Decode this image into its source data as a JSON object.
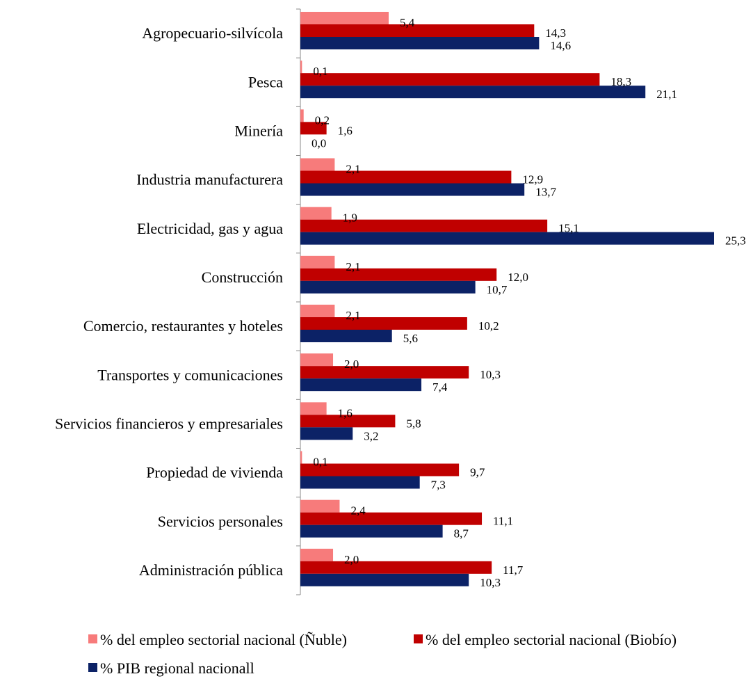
{
  "chart_data": {
    "type": "bar",
    "orientation": "horizontal",
    "categories": [
      "Agropecuario-silvícola",
      "Pesca",
      "Minería",
      "Industria manufacturera",
      "Electricidad, gas y agua",
      "Construcción",
      "Comercio, restaurantes y hoteles",
      "Transportes y comunicaciones",
      "Servicios financieros y empresariales",
      "Propiedad de vivienda",
      "Servicios personales",
      "Administración pública"
    ],
    "series": [
      {
        "name": "% del empleo sectorial nacional (Ñuble)",
        "color": "#f77b7b",
        "values": [
          5.4,
          0.1,
          0.2,
          2.1,
          1.9,
          2.1,
          2.1,
          2.0,
          1.6,
          0.1,
          2.4,
          2.0
        ],
        "labels": [
          "5,4",
          "0,1",
          "0,2",
          "2,1",
          "1,9",
          "2,1",
          "2,1",
          "2,0",
          "1,6",
          "0,1",
          "2,4",
          "2,0"
        ]
      },
      {
        "name": "% del empleo sectorial nacional (Biobío)",
        "color": "#c00000",
        "values": [
          14.3,
          18.3,
          1.6,
          12.9,
          15.1,
          12.0,
          10.2,
          10.3,
          5.8,
          9.7,
          11.1,
          11.7
        ],
        "labels": [
          "14,3",
          "18,3",
          "1,6",
          "12,9",
          "15,1",
          "12,0",
          "10,2",
          "10,3",
          "5,8",
          "9,7",
          "11,1",
          "11,7"
        ]
      },
      {
        "name": "% PIB regional nacionall",
        "color": "#0c2266",
        "values": [
          14.6,
          21.1,
          0.0,
          13.7,
          25.3,
          10.7,
          5.6,
          7.4,
          3.2,
          7.3,
          8.7,
          10.3
        ],
        "labels": [
          "14,6",
          "21,1",
          "0,0",
          "13,7",
          "25,3",
          "10,7",
          "5,6",
          "7,4",
          "3,2",
          "7,3",
          "8,7",
          "10,3"
        ]
      }
    ],
    "xlim": [
      0,
      25.3
    ],
    "grid": false,
    "legend_position": "bottom"
  }
}
